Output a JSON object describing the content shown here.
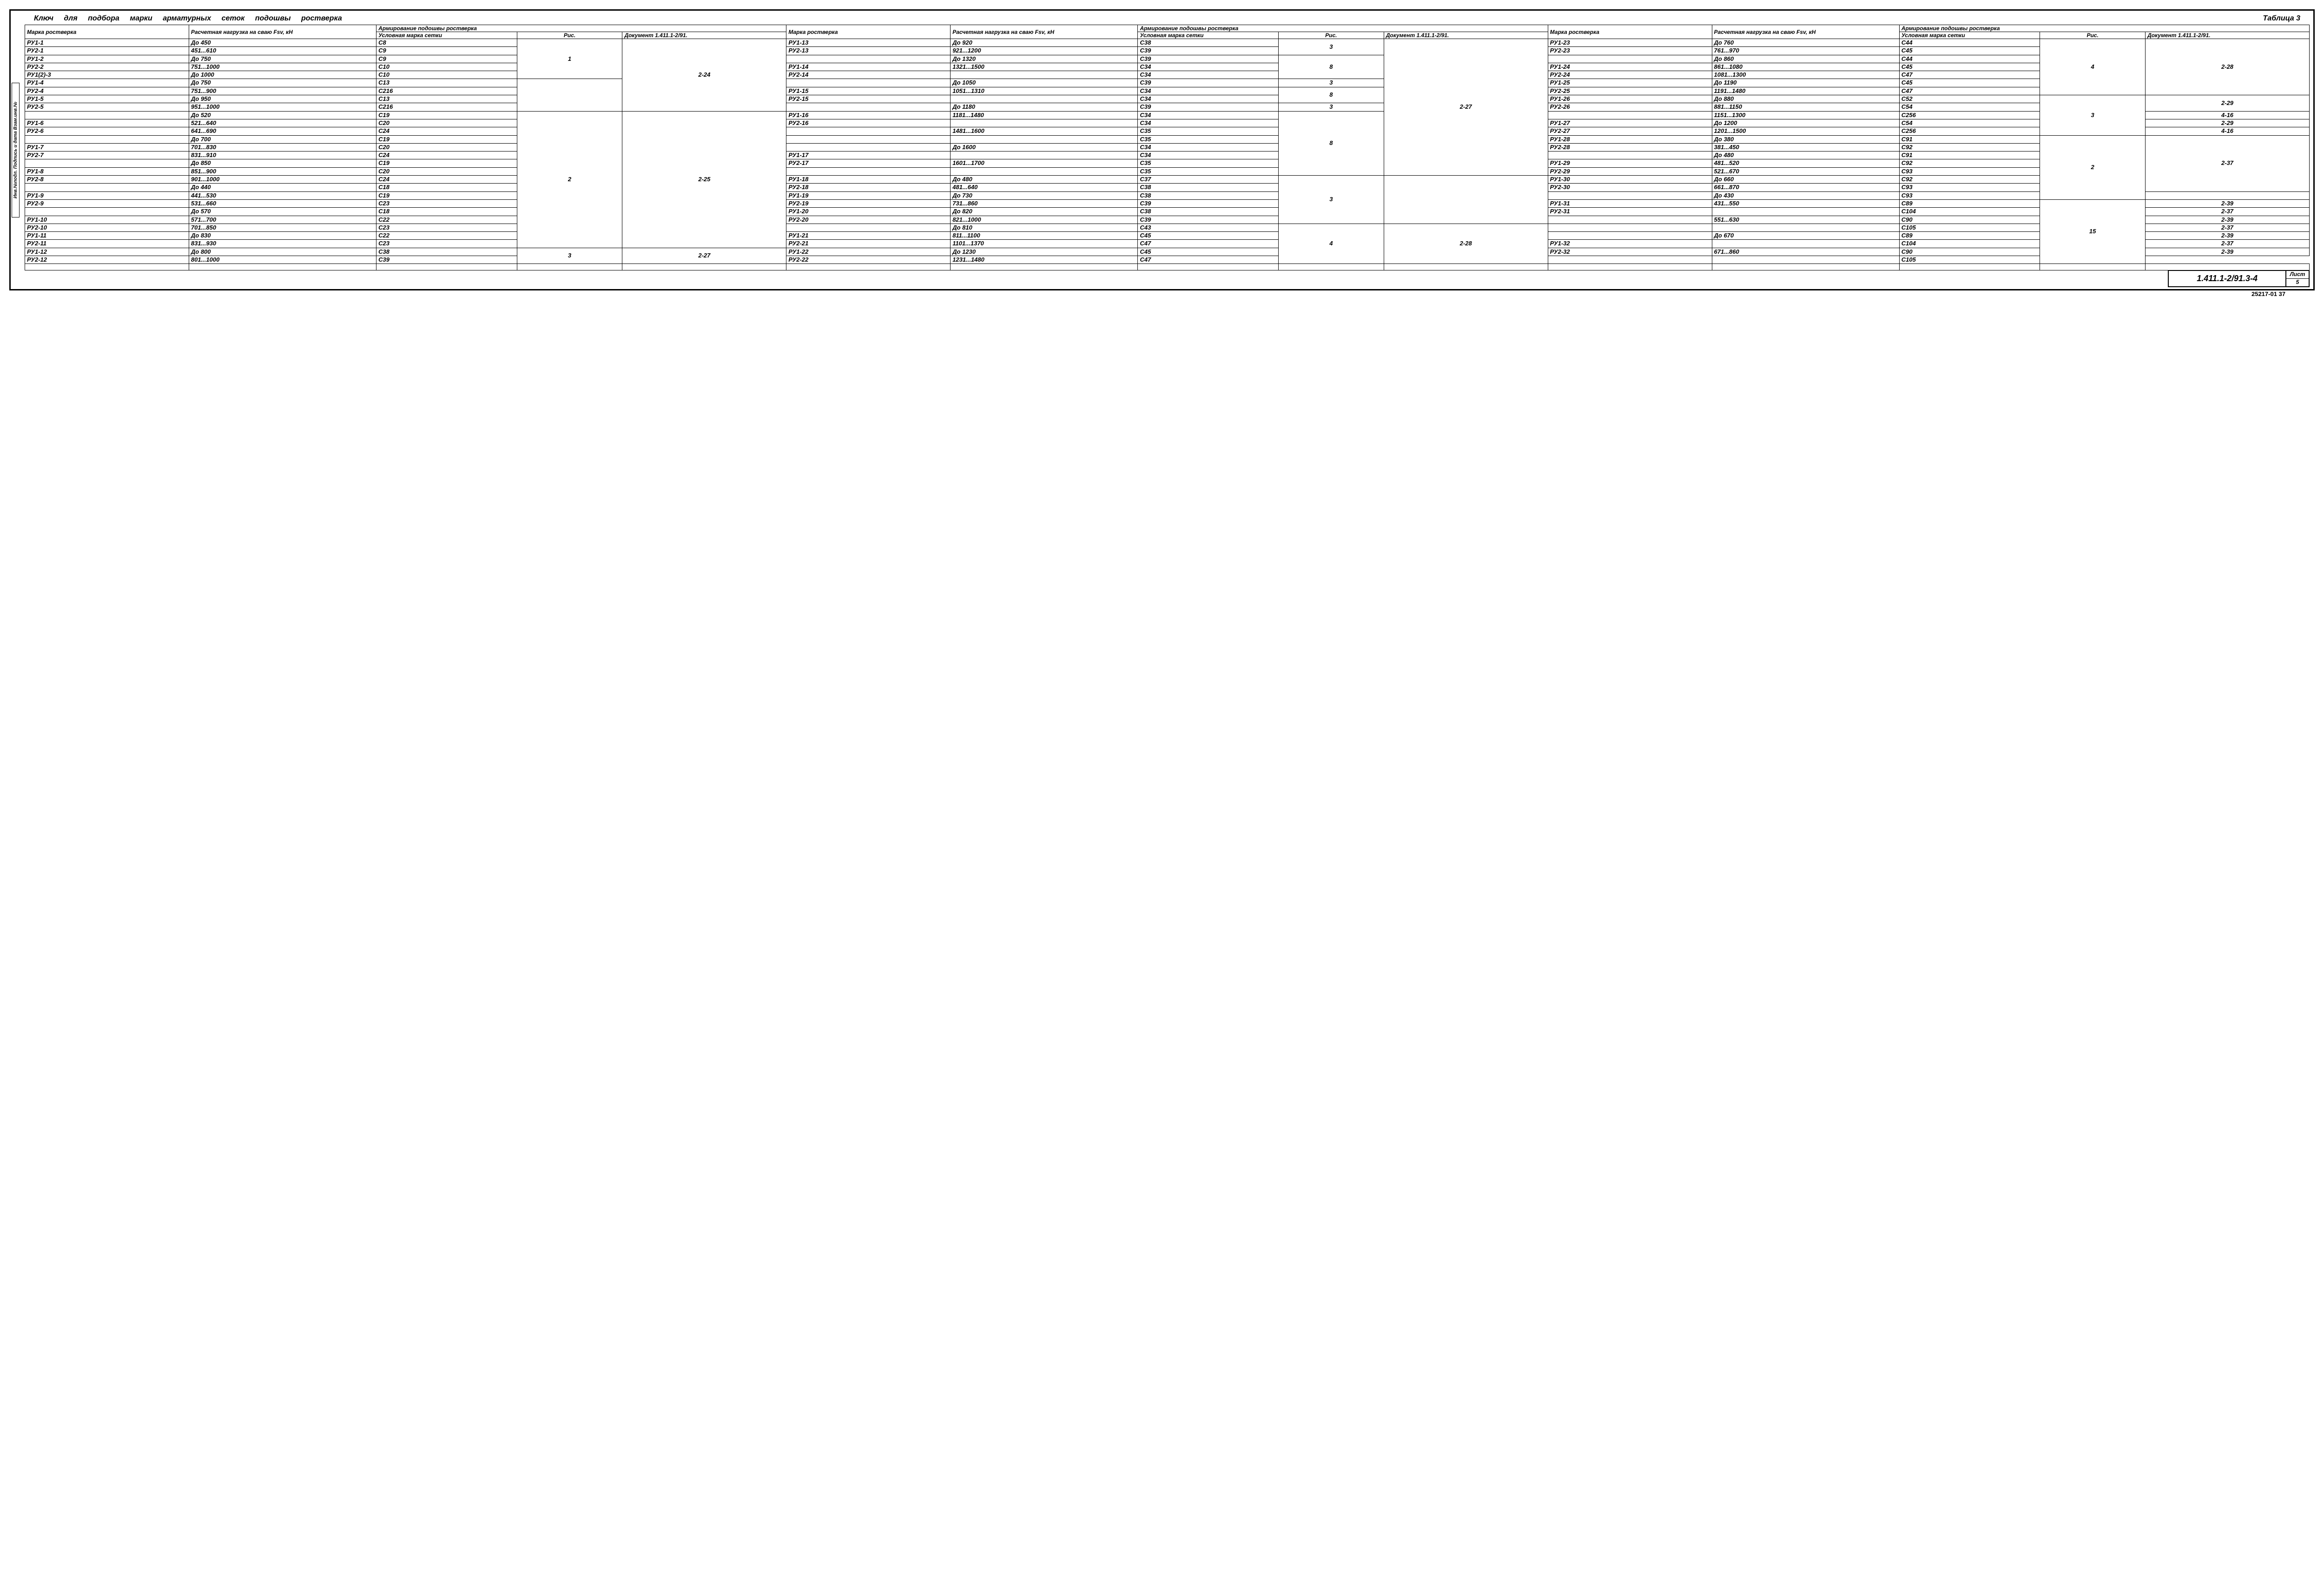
{
  "title_words": [
    "Ключ",
    "для",
    "подбора",
    "марки",
    "арматурных",
    "сеток",
    "подошвы",
    "ростверка"
  ],
  "table_label": "Таблица 3",
  "side_text": "Инв.№подл. Подпись и дата Взам.инв.№",
  "doc_number": "1.411.1-2/91.3-4",
  "sheet_label": "Лист",
  "sheet_num": "5",
  "bottom_code": "25217-01  37",
  "hdr": {
    "marka": "Марка ростверка",
    "load": "Расчетная нагрузка на сваю Fsv, кН",
    "arm": "Армирование подошвы ростверка",
    "setka": "Условная марка сетки",
    "ris": "Рис.",
    "doc": "Документ 1.411.1-2/91."
  },
  "b1": {
    "rows": [
      {
        "m": "РУ1-1",
        "l": "До 450",
        "s": "С8"
      },
      {
        "m": "РУ2-1",
        "l": "451...610",
        "s": "С9"
      },
      {
        "m": "РУ1-2",
        "l": "До 750",
        "s": "С9"
      },
      {
        "m": "РУ2-2",
        "l": "751...1000",
        "s": "С10"
      },
      {
        "m": "РУ1(2)-3",
        "l": "До 1000",
        "s": "С10"
      },
      {
        "m": "РУ1-4",
        "l": "До 750",
        "s": "С13"
      },
      {
        "m": "РУ2-4",
        "l": "751...900",
        "s": "С216"
      },
      {
        "m": "РУ1-5",
        "l": "До 950",
        "s": "С13"
      },
      {
        "m": "РУ2-5",
        "l": "951...1000",
        "s": "С216"
      },
      {
        "m": "",
        "l": "До 520",
        "s": "С19"
      },
      {
        "m": "РУ1-6",
        "l": "521...640",
        "s": "С20"
      },
      {
        "m": "РУ2-6",
        "l": "641...690",
        "s": "С24"
      },
      {
        "m": "",
        "l": "До 700",
        "s": "С19"
      },
      {
        "m": "РУ1-7",
        "l": "701...830",
        "s": "С20"
      },
      {
        "m": "РУ2-7",
        "l": "831...910",
        "s": "С24"
      },
      {
        "m": "",
        "l": "До 850",
        "s": "С19"
      },
      {
        "m": "РУ1-8",
        "l": "851...900",
        "s": "С20"
      },
      {
        "m": "РУ2-8",
        "l": "901...1000",
        "s": "С24"
      },
      {
        "m": "",
        "l": "До 440",
        "s": "С18"
      },
      {
        "m": "РУ1-9",
        "l": "441...530",
        "s": "С19"
      },
      {
        "m": "РУ2-9",
        "l": "531...660",
        "s": "С23"
      },
      {
        "m": "",
        "l": "До 570",
        "s": "С18"
      },
      {
        "m": "РУ1-10",
        "l": "571...700",
        "s": "С22"
      },
      {
        "m": "РУ2-10",
        "l": "701...850",
        "s": "С23"
      },
      {
        "m": "РУ1-11",
        "l": "До 830",
        "s": "С22"
      },
      {
        "m": "РУ2-11",
        "l": "831...930",
        "s": "С23"
      },
      {
        "m": "РУ1-12",
        "l": "До 800",
        "s": "С38"
      },
      {
        "m": "РУ2-12",
        "l": "801...1000",
        "s": "С39"
      }
    ],
    "ris_groups": [
      {
        "span": 5,
        "val": "1"
      },
      {
        "span": 4,
        "val": ""
      },
      {
        "span": 17,
        "val": "2"
      },
      {
        "span": 2,
        "val": "3"
      }
    ],
    "doc_groups": [
      {
        "span": 9,
        "val": "2-24"
      },
      {
        "span": 17,
        "val": "2-25"
      },
      {
        "span": 2,
        "val": "2-27"
      }
    ]
  },
  "b2": {
    "rows": [
      {
        "m": "РУ1-13",
        "l": "До 920",
        "s": "С38"
      },
      {
        "m": "РУ2-13",
        "l": "921...1200",
        "s": "С39"
      },
      {
        "m": "",
        "l": "До 1320",
        "s": "С39"
      },
      {
        "m": "РУ1-14",
        "l": "1321...1500",
        "s": "С34"
      },
      {
        "m": "РУ2-14",
        "l": "",
        "s": "С34"
      },
      {
        "m": "",
        "l": "До 1050",
        "s": "С39"
      },
      {
        "m": "РУ1-15",
        "l": "1051...1310",
        "s": "С34"
      },
      {
        "m": "РУ2-15",
        "l": "",
        "s": "С34"
      },
      {
        "m": "",
        "l": "До 1180",
        "s": "С39"
      },
      {
        "m": "РУ1-16",
        "l": "1181...1480",
        "s": "С34"
      },
      {
        "m": "РУ2-16",
        "l": "",
        "s": "С34"
      },
      {
        "m": "",
        "l": "1481...1600",
        "s": "С35"
      },
      {
        "m": "",
        "l": "",
        "s": "С35"
      },
      {
        "m": "",
        "l": "До 1600",
        "s": "С34"
      },
      {
        "m": "РУ1-17",
        "l": "",
        "s": "С34"
      },
      {
        "m": "РУ2-17",
        "l": "1601...1700",
        "s": "С35"
      },
      {
        "m": "",
        "l": "",
        "s": "С35"
      },
      {
        "m": "РУ1-18",
        "l": "До 480",
        "s": "С37"
      },
      {
        "m": "РУ2-18",
        "l": "481...640",
        "s": "С38"
      },
      {
        "m": "РУ1-19",
        "l": "До 730",
        "s": "С38"
      },
      {
        "m": "РУ2-19",
        "l": "731...860",
        "s": "С39"
      },
      {
        "m": "РУ1-20",
        "l": "До 820",
        "s": "С38"
      },
      {
        "m": "РУ2-20",
        "l": "821...1000",
        "s": "С39"
      },
      {
        "m": "",
        "l": "До 810",
        "s": "С43"
      },
      {
        "m": "РУ1-21",
        "l": "811...1100",
        "s": "С45"
      },
      {
        "m": "РУ2-21",
        "l": "1101...1370",
        "s": "С47"
      },
      {
        "m": "РУ1-22",
        "l": "До 1230",
        "s": "С45"
      },
      {
        "m": "РУ2-22",
        "l": "1231...1480",
        "s": "С47"
      }
    ],
    "ris_groups": [
      {
        "span": 2,
        "val": "3"
      },
      {
        "span": 3,
        "val": "8"
      },
      {
        "span": 1,
        "val": "3"
      },
      {
        "span": 2,
        "val": "8"
      },
      {
        "span": 1,
        "val": "3"
      },
      {
        "span": 8,
        "val": "8"
      },
      {
        "span": 6,
        "val": "3"
      },
      {
        "span": 5,
        "val": "4"
      }
    ],
    "doc_groups": [
      {
        "span": 17,
        "val": "2-27"
      },
      {
        "span": 6,
        "val": ""
      },
      {
        "span": 5,
        "val": "2-28"
      }
    ]
  },
  "b3": {
    "rows": [
      {
        "m": "РУ1-23",
        "l": "До 760",
        "s": "С44"
      },
      {
        "m": "РУ2-23",
        "l": "761...970",
        "s": "С45"
      },
      {
        "m": "",
        "l": "До 860",
        "s": "С44"
      },
      {
        "m": "РУ1-24",
        "l": "861...1080",
        "s": "С45"
      },
      {
        "m": "РУ2-24",
        "l": "1081...1300",
        "s": "С47"
      },
      {
        "m": "РУ1-25",
        "l": "До 1190",
        "s": "С45"
      },
      {
        "m": "РУ2-25",
        "l": "1191...1480",
        "s": "С47"
      },
      {
        "m": "РУ1-26",
        "l": "До 880",
        "s": "С52"
      },
      {
        "m": "РУ2-26",
        "l": "881...1150",
        "s": "С54"
      },
      {
        "m": "",
        "l": "1151...1300",
        "s": "С256"
      },
      {
        "m": "РУ1-27",
        "l": "До 1200",
        "s": "С54"
      },
      {
        "m": "РУ2-27",
        "l": "1201...1500",
        "s": "С256"
      },
      {
        "m": "РУ1-28",
        "l": "До 380",
        "s": "С91"
      },
      {
        "m": "РУ2-28",
        "l": "381...450",
        "s": "С92"
      },
      {
        "m": "",
        "l": "До 480",
        "s": "С91"
      },
      {
        "m": "РУ1-29",
        "l": "481...520",
        "s": "С92"
      },
      {
        "m": "РУ2-29",
        "l": "521...670",
        "s": "С93"
      },
      {
        "m": "РУ1-30",
        "l": "До 660",
        "s": "С92"
      },
      {
        "m": "РУ2-30",
        "l": "661...870",
        "s": "С93"
      },
      {
        "m": "",
        "l": "До 430",
        "s": "С93"
      },
      {
        "m": "РУ1-31",
        "l": "431...550",
        "s": "С89"
      },
      {
        "m": "РУ2-31",
        "l": "",
        "s": "С104"
      },
      {
        "m": "",
        "l": "551...630",
        "s": "С90"
      },
      {
        "m": "",
        "l": "",
        "s": "С105"
      },
      {
        "m": "",
        "l": "До 670",
        "s": "С89"
      },
      {
        "m": "РУ1-32",
        "l": "",
        "s": "С104"
      },
      {
        "m": "РУ2-32",
        "l": "671...860",
        "s": "С90"
      },
      {
        "m": "",
        "l": "",
        "s": "С105"
      }
    ],
    "ris_groups": [
      {
        "span": 7,
        "val": "4"
      },
      {
        "span": 5,
        "val": "3"
      },
      {
        "span": 8,
        "val": "2"
      },
      {
        "span": 8,
        "val": "15"
      }
    ],
    "doc_groups": [
      {
        "span": 7,
        "val": "2-28"
      },
      {
        "span": 2,
        "val": "2-29"
      },
      {
        "span": 1,
        "val": "4-16"
      },
      {
        "span": 1,
        "val": "2-29"
      },
      {
        "span": 1,
        "val": "4-16"
      },
      {
        "span": 7,
        "val": "2-37"
      },
      {
        "span": 1,
        "val": ""
      },
      {
        "span": 1,
        "val": "2-39"
      },
      {
        "span": 1,
        "val": "2-37"
      },
      {
        "span": 1,
        "val": "2-39"
      },
      {
        "span": 1,
        "val": "2-37"
      },
      {
        "span": 1,
        "val": "2-39"
      },
      {
        "span": 1,
        "val": "2-37"
      },
      {
        "span": 1,
        "val": "2-39"
      }
    ]
  }
}
